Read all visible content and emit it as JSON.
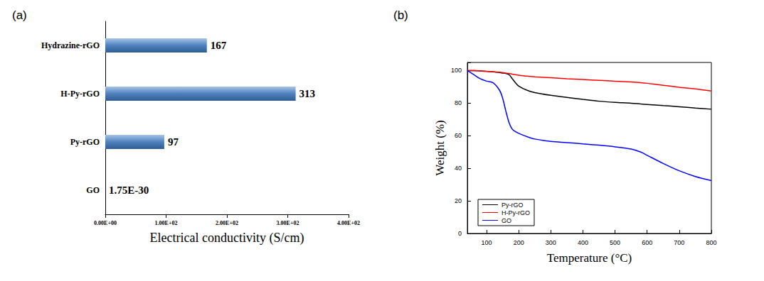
{
  "chart_data": [
    {
      "type": "bar",
      "title": "(a)",
      "orientation": "horizontal",
      "categories": [
        "GO",
        "Py-rGO",
        "H-Py-rGO",
        "Hydrazine-rGO"
      ],
      "values": [
        1.75e-30,
        97,
        313,
        167
      ],
      "value_labels": [
        "1.75E-30",
        "97",
        "313",
        "167"
      ],
      "data_labels": true,
      "color": "#4f81bd",
      "xlabel": "Electrical conductivity (S/cm)",
      "xlim": [
        0,
        400
      ],
      "xticks": [
        {
          "value": 0,
          "label": "0.00E+00"
        },
        {
          "value": 100,
          "label": "1.00E+02"
        },
        {
          "value": 200,
          "label": "2.00E+02"
        },
        {
          "value": 300,
          "label": "3.00E+02"
        },
        {
          "value": 400,
          "label": "4.00E+02"
        }
      ],
      "grid": false
    },
    {
      "type": "line",
      "title": "(b)",
      "xlabel": "Temperature (°C)",
      "ylabel": "Weight (%)",
      "xlim": [
        40,
        800
      ],
      "xticks": [
        100,
        200,
        300,
        400,
        500,
        600,
        700,
        800
      ],
      "ylim": [
        0,
        105
      ],
      "yticks": [
        0,
        20,
        40,
        60,
        80,
        100
      ],
      "legend": "lower left",
      "grid": false,
      "x": [
        40,
        60,
        80,
        100,
        120,
        140,
        150,
        160,
        170,
        180,
        190,
        200,
        225,
        250,
        300,
        350,
        400,
        450,
        500,
        550,
        580,
        600,
        650,
        700,
        750,
        800
      ],
      "series": [
        {
          "name": "Py-rGO",
          "color": "#000000",
          "values": [
            100,
            100,
            99.8,
            99.5,
            99.2,
            98.8,
            98.5,
            98.2,
            97.5,
            95,
            92.5,
            90.5,
            88,
            86.5,
            84.8,
            83.5,
            82.3,
            81.2,
            80.5,
            80,
            79.5,
            79.2,
            78.5,
            77.8,
            77,
            76.3
          ]
        },
        {
          "name": "H-Py-rGO",
          "color": "#ff0000",
          "values": [
            100,
            100,
            99.8,
            99.6,
            99.3,
            99,
            98.8,
            98.5,
            98.2,
            97.8,
            97.5,
            97.2,
            96.6,
            96.2,
            95.6,
            95,
            94.5,
            94,
            93.5,
            93,
            92.6,
            92.2,
            91,
            89.8,
            88.8,
            87.5
          ]
        },
        {
          "name": "GO",
          "color": "#0000ff",
          "values": [
            100,
            97.5,
            95,
            93.5,
            92.5,
            88,
            83,
            75,
            68,
            64,
            62.5,
            61.5,
            59.5,
            58,
            56.5,
            55.8,
            55,
            54.2,
            53.2,
            51.8,
            50,
            48,
            43,
            38.5,
            35,
            32.5
          ]
        }
      ]
    }
  ]
}
